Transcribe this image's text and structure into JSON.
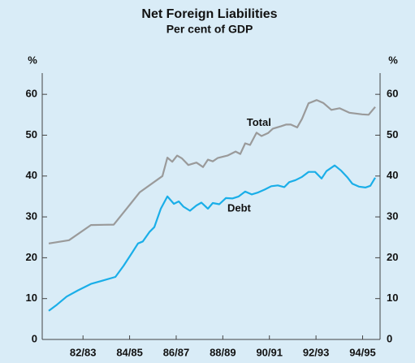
{
  "chart_data": {
    "type": "line",
    "title": "Net Foreign Liabilities",
    "subtitle": "Per cent of GDP",
    "y_unit": "%",
    "xlim": [
      1981.25,
      1995.75
    ],
    "xticks": [
      {
        "value": 1983.0,
        "label": "82/83"
      },
      {
        "value": 1985.0,
        "label": "84/85"
      },
      {
        "value": 1987.0,
        "label": "86/87"
      },
      {
        "value": 1989.0,
        "label": "88/89"
      },
      {
        "value": 1991.0,
        "label": "90/91"
      },
      {
        "value": 1993.0,
        "label": "92/93"
      },
      {
        "value": 1995.0,
        "label": "94/95"
      }
    ],
    "ylim": [
      0,
      65
    ],
    "yticks": [
      0,
      10,
      20,
      30,
      40,
      50,
      60
    ],
    "annotations": [
      {
        "text": "Total",
        "x": 1990.55,
        "y": 53
      },
      {
        "text": "Debt",
        "x": 1989.7,
        "y": 32
      }
    ],
    "series": [
      {
        "name": "Total",
        "color": "#9a9a9a",
        "x": [
          1981.53,
          1982.4,
          1983.34,
          1984.32,
          1985.01,
          1985.43,
          1986.41,
          1986.62,
          1986.83,
          1987.04,
          1987.25,
          1987.52,
          1987.87,
          1988.15,
          1988.36,
          1988.57,
          1988.78,
          1989.2,
          1989.55,
          1989.75,
          1989.96,
          1990.17,
          1990.45,
          1990.66,
          1990.94,
          1991.15,
          1991.5,
          1991.71,
          1991.92,
          1992.19,
          1992.4,
          1992.68,
          1993.03,
          1993.31,
          1993.66,
          1994.01,
          1994.43,
          1994.98,
          1995.26,
          1995.54
        ],
        "values": [
          23.5,
          24.3,
          28,
          28.1,
          33,
          36,
          40,
          44.5,
          43.5,
          45,
          44.3,
          42.7,
          43.3,
          42.2,
          44,
          43.6,
          44.4,
          45,
          46,
          45.4,
          48,
          47.6,
          50.6,
          49.8,
          50.5,
          51.6,
          52.2,
          52.6,
          52.6,
          51.9,
          54,
          57.8,
          58.6,
          57.9,
          56.2,
          56.6,
          55.5,
          55.1,
          55,
          56.9
        ]
      },
      {
        "name": "Debt",
        "color": "#1aaee8",
        "x": [
          1981.53,
          1981.88,
          1982.3,
          1982.78,
          1983.34,
          1983.9,
          1984.39,
          1984.74,
          1985.08,
          1985.36,
          1985.57,
          1985.85,
          1986.06,
          1986.34,
          1986.62,
          1986.9,
          1987.11,
          1987.31,
          1987.59,
          1987.87,
          1988.08,
          1988.36,
          1988.57,
          1988.85,
          1989.13,
          1989.41,
          1989.68,
          1989.96,
          1990.24,
          1990.52,
          1990.8,
          1991.08,
          1991.36,
          1991.64,
          1991.85,
          1992.12,
          1992.4,
          1992.68,
          1992.96,
          1993.24,
          1993.45,
          1993.8,
          1994.08,
          1994.36,
          1994.56,
          1994.84,
          1995.12,
          1995.33,
          1995.54
        ],
        "values": [
          7,
          8.5,
          10.5,
          12,
          13.6,
          14.5,
          15.3,
          18,
          21,
          23.5,
          24,
          26.3,
          27.5,
          32,
          35,
          33.2,
          33.8,
          32.5,
          31.5,
          32.8,
          33.5,
          32,
          33.4,
          33.1,
          34.6,
          34.5,
          35,
          36.2,
          35.5,
          36,
          36.7,
          37.5,
          37.7,
          37.3,
          38.5,
          39,
          39.8,
          41,
          41,
          39.4,
          41.2,
          42.6,
          41.3,
          39.6,
          38.1,
          37.4,
          37.2,
          37.6,
          39.6
        ]
      }
    ]
  }
}
